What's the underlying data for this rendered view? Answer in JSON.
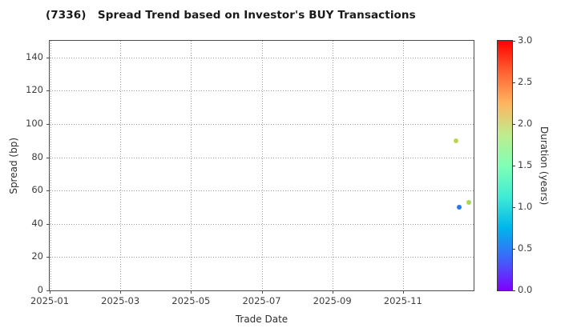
{
  "chart_data": {
    "type": "scatter",
    "title": "(7336)   Spread Trend based on Investor's BUY Transactions",
    "xlabel": "Trade Date",
    "ylabel": "Spread (bp)",
    "colorbar_label": "Duration (years)",
    "xlim": [
      "2025-01",
      "2026-01"
    ],
    "ylim": [
      0,
      150
    ],
    "x_ticks": [
      "2025-01",
      "2025-03",
      "2025-05",
      "2025-07",
      "2025-09",
      "2025-11"
    ],
    "y_ticks": [
      0,
      20,
      40,
      60,
      80,
      100,
      120,
      140
    ],
    "grid": "dotted",
    "legend_position": "none",
    "colorbar": {
      "range": [
        0.0,
        3.0
      ],
      "ticks": [
        0.0,
        0.5,
        1.0,
        1.5,
        2.0,
        2.5,
        3.0
      ],
      "colormap_name": "rainbow",
      "stops": [
        {
          "pos": "0%",
          "color": "#8000ff"
        },
        {
          "pos": "12.5%",
          "color": "#4063fa"
        },
        {
          "pos": "25%",
          "color": "#00b5ec"
        },
        {
          "pos": "37.5%",
          "color": "#40ecd4"
        },
        {
          "pos": "50%",
          "color": "#80ffb5"
        },
        {
          "pos": "62.5%",
          "color": "#bfec8e"
        },
        {
          "pos": "75%",
          "color": "#ffb461"
        },
        {
          "pos": "87.5%",
          "color": "#ff6232"
        },
        {
          "pos": "100%",
          "color": "#ff0000"
        }
      ]
    },
    "points": [
      {
        "date": "2025-12-16",
        "spread_bp": 90,
        "duration_years": 1.9,
        "color": "#bcd74f"
      },
      {
        "date": "2025-12-27",
        "spread_bp": 53,
        "duration_years": 1.8,
        "color": "#abd955"
      },
      {
        "date": "2025-12-19",
        "spread_bp": 50,
        "duration_years": 0.5,
        "color": "#2679e8"
      }
    ]
  }
}
